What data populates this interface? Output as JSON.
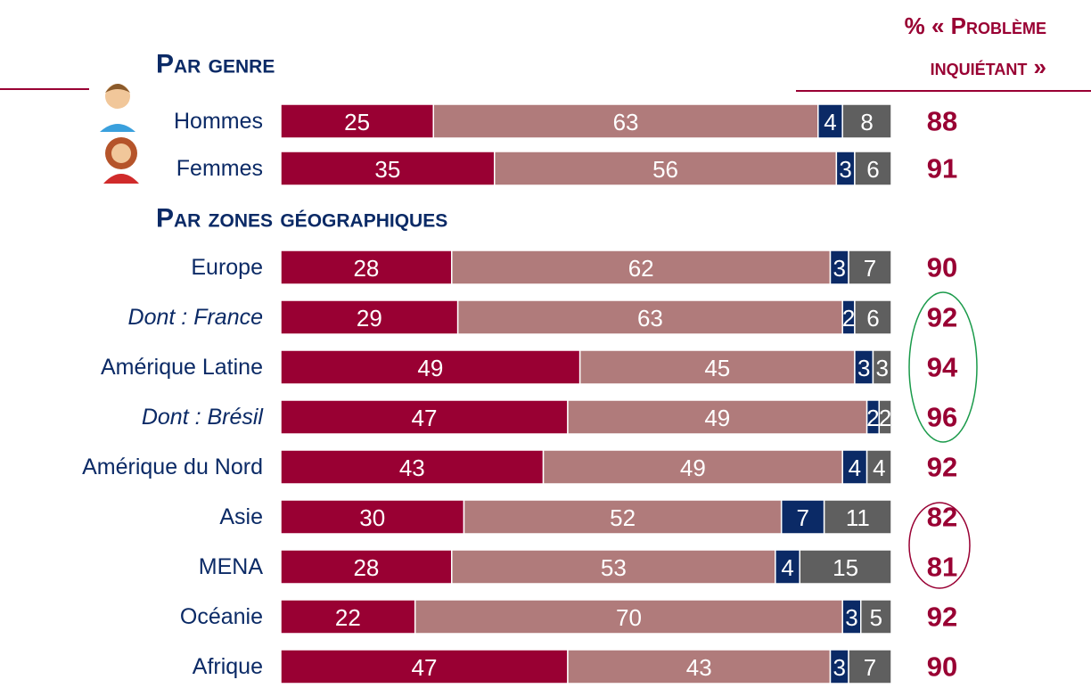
{
  "header": "% « Problème inquiétant »",
  "chart_data": [
    {
      "type": "bar",
      "title": "Par genre",
      "categories": [
        "Hommes",
        "Femmes"
      ],
      "italic": [
        false,
        false
      ],
      "xlim": [
        0,
        100
      ],
      "series": [
        {
          "color": "#990033",
          "values": [
            25,
            35
          ]
        },
        {
          "color": "#b07b7b",
          "values": [
            63,
            56
          ]
        },
        {
          "color": "#0b2a66",
          "values": [
            4,
            3
          ]
        },
        {
          "color": "#5f5f5f",
          "values": [
            8,
            6
          ]
        }
      ],
      "totals": [
        88,
        91
      ],
      "totals_color": "#990033"
    },
    {
      "type": "bar",
      "title": "Par zones géographiques",
      "categories": [
        "Europe",
        "Dont : France",
        "Amérique Latine",
        "Dont : Brésil",
        "Amérique du Nord",
        "Asie",
        "MENA",
        "Océanie",
        "Afrique"
      ],
      "italic": [
        false,
        true,
        false,
        true,
        false,
        false,
        false,
        false,
        false
      ],
      "xlim": [
        0,
        100
      ],
      "series": [
        {
          "color": "#990033",
          "values": [
            28,
            29,
            49,
            47,
            43,
            30,
            28,
            22,
            47
          ]
        },
        {
          "color": "#b07b7b",
          "values": [
            62,
            63,
            45,
            49,
            49,
            52,
            53,
            70,
            43
          ]
        },
        {
          "color": "#0b2a66",
          "values": [
            3,
            2,
            3,
            2,
            4,
            7,
            4,
            3,
            3
          ]
        },
        {
          "color": "#5f5f5f",
          "values": [
            7,
            6,
            3,
            2,
            4,
            11,
            15,
            5,
            7
          ]
        }
      ],
      "totals": [
        90,
        92,
        94,
        96,
        92,
        82,
        81,
        92,
        90
      ],
      "totals_color": "#990033"
    }
  ]
}
